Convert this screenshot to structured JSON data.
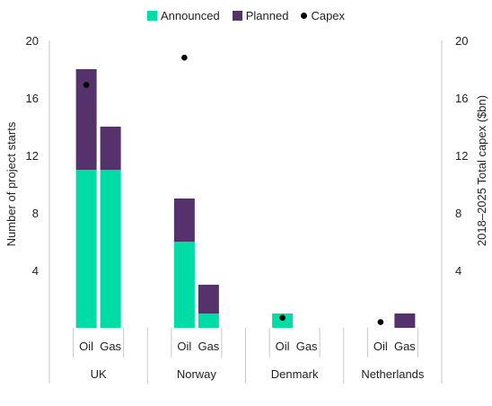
{
  "colors": {
    "announced": "#00dca6",
    "planned": "#56326c",
    "capex": "#000000",
    "axis": "#c8c8c8"
  },
  "chart_data": {
    "type": "bar",
    "stacked": true,
    "legend_position": "top-center",
    "legend": [
      {
        "key": "announced",
        "label": "Announced",
        "kind": "swatch"
      },
      {
        "key": "planned",
        "label": "Planned",
        "kind": "swatch"
      },
      {
        "key": "capex",
        "label": "Capex",
        "kind": "dot"
      }
    ],
    "ylabel_left": "Number of project starts",
    "ylabel_right": "2018–2025 Total capex ($bn)",
    "ylim_left": [
      0,
      20
    ],
    "ylim_right": [
      0,
      20
    ],
    "yticks": [
      4,
      8,
      12,
      16,
      20
    ],
    "ytick_labels": [
      "4",
      "8",
      "12",
      "16",
      "20"
    ],
    "groups": [
      {
        "name": "UK",
        "bars": [
          {
            "label": "Oil",
            "announced": 11,
            "planned": 7,
            "capex": 16.9
          },
          {
            "label": "Gas",
            "announced": 11,
            "planned": 3,
            "capex": null
          }
        ]
      },
      {
        "name": "Norway",
        "bars": [
          {
            "label": "Oil",
            "announced": 6,
            "planned": 3,
            "capex": 18.8
          },
          {
            "label": "Gas",
            "announced": 1,
            "planned": 2,
            "capex": null
          }
        ]
      },
      {
        "name": "Denmark",
        "bars": [
          {
            "label": "Oil",
            "announced": 1,
            "planned": 0,
            "capex": 0.7
          },
          {
            "label": "Gas",
            "announced": 0,
            "planned": 0,
            "capex": null
          }
        ]
      },
      {
        "name": "Netherlands",
        "bars": [
          {
            "label": "Oil",
            "announced": 0,
            "planned": 0,
            "capex": 0.4
          },
          {
            "label": "Gas",
            "announced": 0,
            "planned": 1,
            "capex": null
          }
        ]
      }
    ]
  }
}
